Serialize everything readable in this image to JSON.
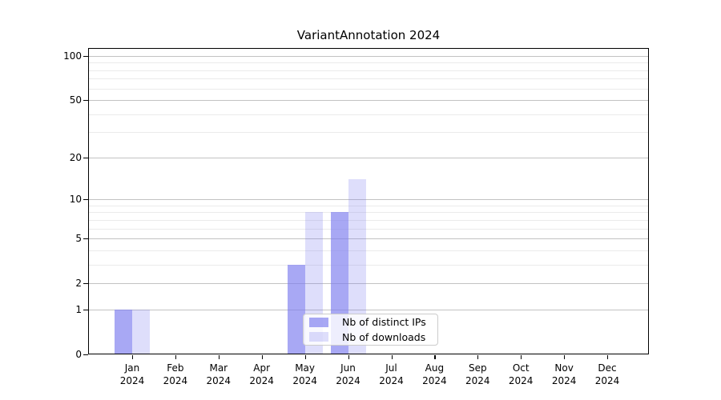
{
  "chart_data": {
    "type": "bar",
    "title": "VariantAnnotation 2024",
    "categories": [
      "Jan 2024",
      "Feb 2024",
      "Mar 2024",
      "Apr 2024",
      "May 2024",
      "Jun 2024",
      "Jul 2024",
      "Aug 2024",
      "Sep 2024",
      "Oct 2024",
      "Nov 2024",
      "Dec 2024"
    ],
    "series": [
      {
        "name": "Nb of distinct IPs",
        "values": [
          1,
          0,
          0,
          0,
          3,
          8,
          0,
          0,
          0,
          0,
          0,
          0
        ],
        "color": "rgba(125,125,238,0.67)"
      },
      {
        "name": "Nb of downloads",
        "values": [
          1,
          0,
          0,
          0,
          8,
          14,
          0,
          0,
          0,
          0,
          0,
          0
        ],
        "color": "rgba(125,125,238,0.25)"
      }
    ],
    "xlabel": "",
    "ylabel": "",
    "yscale": "log10(value+1)",
    "yticks_major": [
      0,
      1,
      2,
      5,
      10,
      20,
      50,
      100
    ],
    "yticks_minor": [
      3,
      4,
      6,
      7,
      8,
      9,
      30,
      40,
      60,
      70,
      80,
      90
    ],
    "ylim": [
      0,
      113
    ],
    "grid": true,
    "legend_position": "inside-bottom-center"
  },
  "colors": {
    "grid_major": "#c2c2c2",
    "grid_minor": "#ebebeb",
    "axis": "#000000",
    "legend_border": "#cccccc",
    "legend_bg": "rgba(255,255,255,0.8)"
  }
}
